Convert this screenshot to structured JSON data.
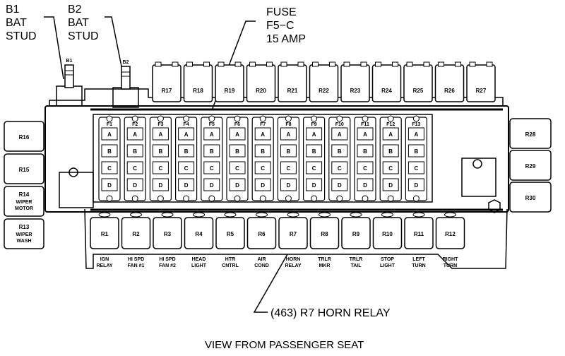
{
  "callouts": {
    "b1": [
      "B1",
      "BAT",
      "STUD"
    ],
    "b2": [
      "B2",
      "BAT",
      "STUD"
    ],
    "fuse": [
      "FUSE",
      "F5−C",
      "15 AMP"
    ],
    "horn": "(463) R7 HORN RELAY",
    "view": "VIEW FROM PASSENGER SEAT"
  },
  "studs": [
    "B1",
    "B2"
  ],
  "top_relays": [
    "R17",
    "R18",
    "R19",
    "R20",
    "R21",
    "R22",
    "R23",
    "R24",
    "R25",
    "R26",
    "R27"
  ],
  "left_relays": [
    {
      "id": "R16",
      "sub": ""
    },
    {
      "id": "R15",
      "sub": ""
    },
    {
      "id": "R14",
      "sub": "WIPER MOTOR"
    },
    {
      "id": "R13",
      "sub": "WIPER WASH"
    }
  ],
  "right_relays": [
    "R28",
    "R29",
    "R30"
  ],
  "fuse_columns": [
    "F1",
    "F2",
    "F3",
    "F4",
    "F5",
    "F6",
    "F7",
    "F8",
    "F9",
    "F10",
    "F11",
    "F12",
    "F13"
  ],
  "fuse_rows": [
    "A",
    "B",
    "C",
    "D"
  ],
  "bottom_relays": [
    {
      "id": "R1",
      "line1": "IGN",
      "line2": "RELAY"
    },
    {
      "id": "R2",
      "line1": "HI SPD",
      "line2": "FAN #1"
    },
    {
      "id": "R3",
      "line1": "HI SPD",
      "line2": "FAN #2"
    },
    {
      "id": "R4",
      "line1": "HEAD",
      "line2": "LIGHT"
    },
    {
      "id": "R5",
      "line1": "HTR",
      "line2": "CNTRL"
    },
    {
      "id": "R6",
      "line1": "AIR",
      "line2": "COND"
    },
    {
      "id": "R7",
      "line1": "HORN",
      "line2": "RELAY"
    },
    {
      "id": "R8",
      "line1": "TRLR",
      "line2": "MKR"
    },
    {
      "id": "R9",
      "line1": "TRLR",
      "line2": "TAIL"
    },
    {
      "id": "R10",
      "line1": "STOP",
      "line2": "LIGHT"
    },
    {
      "id": "R11",
      "line1": "LEFT",
      "line2": "TURN"
    },
    {
      "id": "R12",
      "line1": "RIGHT",
      "line2": "TURN"
    }
  ]
}
